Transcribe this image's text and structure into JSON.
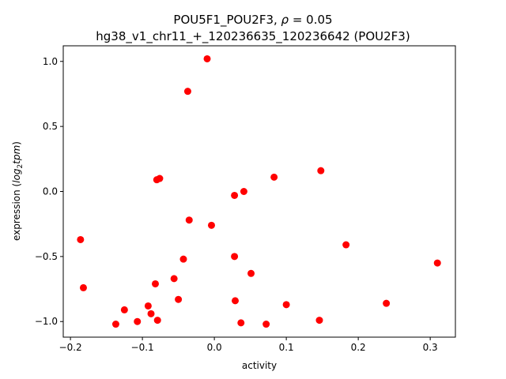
{
  "chart_data": {
    "type": "scatter",
    "title_line1_prefix": "POU5F1_POU2F3, ",
    "title_line1_rho": "ρ",
    "title_line1_suffix": " = 0.05",
    "title_line2": "hg38_v1_chr11_+_120236635_120236642 (POU2F3)",
    "xlabel": "activity",
    "ylabel": "expression (log₂tpm)",
    "xlim": [
      -0.21,
      0.335
    ],
    "ylim": [
      -1.12,
      1.12
    ],
    "xticks": [
      -0.2,
      -0.1,
      0.0,
      0.1,
      0.2,
      0.3
    ],
    "xtick_labels": [
      "−0.2",
      "−0.1",
      "0.0",
      "0.1",
      "0.2",
      "0.3"
    ],
    "yticks": [
      -1.0,
      -0.5,
      0.0,
      0.5,
      1.0
    ],
    "ytick_labels": [
      "−1.0",
      "−0.5",
      "0.0",
      "0.5",
      "1.0"
    ],
    "grid": false,
    "marker_color": "#ff0000",
    "points": [
      {
        "x": -0.01,
        "y": 1.02
      },
      {
        "x": -0.037,
        "y": 0.77
      },
      {
        "x": 0.148,
        "y": 0.16
      },
      {
        "x": 0.083,
        "y": 0.11
      },
      {
        "x": -0.076,
        "y": 0.1
      },
      {
        "x": -0.08,
        "y": 0.09
      },
      {
        "x": 0.041,
        "y": 0.0
      },
      {
        "x": 0.028,
        "y": -0.03
      },
      {
        "x": -0.035,
        "y": -0.22
      },
      {
        "x": -0.004,
        "y": -0.26
      },
      {
        "x": -0.186,
        "y": -0.37
      },
      {
        "x": 0.183,
        "y": -0.41
      },
      {
        "x": 0.028,
        "y": -0.5
      },
      {
        "x": -0.043,
        "y": -0.52
      },
      {
        "x": 0.31,
        "y": -0.55
      },
      {
        "x": 0.051,
        "y": -0.63
      },
      {
        "x": -0.056,
        "y": -0.67
      },
      {
        "x": -0.082,
        "y": -0.71
      },
      {
        "x": -0.182,
        "y": -0.74
      },
      {
        "x": -0.05,
        "y": -0.83
      },
      {
        "x": 0.029,
        "y": -0.84
      },
      {
        "x": 0.239,
        "y": -0.86
      },
      {
        "x": -0.092,
        "y": -0.88
      },
      {
        "x": 0.1,
        "y": -0.87
      },
      {
        "x": -0.125,
        "y": -0.91
      },
      {
        "x": -0.088,
        "y": -0.94
      },
      {
        "x": 0.146,
        "y": -0.99
      },
      {
        "x": -0.079,
        "y": -0.99
      },
      {
        "x": -0.107,
        "y": -1.0
      },
      {
        "x": -0.137,
        "y": -1.02
      },
      {
        "x": 0.037,
        "y": -1.01
      },
      {
        "x": 0.072,
        "y": -1.02
      }
    ]
  }
}
